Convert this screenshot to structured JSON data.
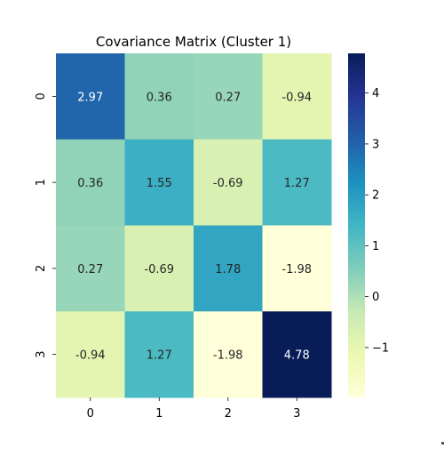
{
  "chart_data": {
    "type": "heatmap",
    "title": "Covariance Matrix (Cluster 1)",
    "xlabel": "",
    "ylabel": "",
    "x_categories": [
      "0",
      "1",
      "2",
      "3"
    ],
    "y_categories": [
      "0",
      "1",
      "2",
      "3"
    ],
    "values": [
      [
        2.97,
        0.36,
        0.27,
        -0.94
      ],
      [
        0.36,
        1.55,
        -0.69,
        1.27
      ],
      [
        0.27,
        -0.69,
        1.78,
        -1.98
      ],
      [
        -0.94,
        1.27,
        -1.98,
        4.78
      ]
    ],
    "value_labels": [
      [
        "2.97",
        "0.36",
        "0.27",
        "-0.94"
      ],
      [
        "0.36",
        "1.55",
        "-0.69",
        "1.27"
      ],
      [
        "0.27",
        "-0.69",
        "1.78",
        "-1.98"
      ],
      [
        "-0.94",
        "1.27",
        "-1.98",
        "4.78"
      ]
    ],
    "colormap": "YlGnBu",
    "color_range": [
      -1.98,
      4.78
    ],
    "colorbar_ticks": [
      -1,
      0,
      1,
      2,
      3,
      4
    ],
    "colorbar_tick_labels": [
      "−1",
      "0",
      "1",
      "2",
      "3",
      "4"
    ],
    "grid": false,
    "legend": "colorbar-right"
  }
}
